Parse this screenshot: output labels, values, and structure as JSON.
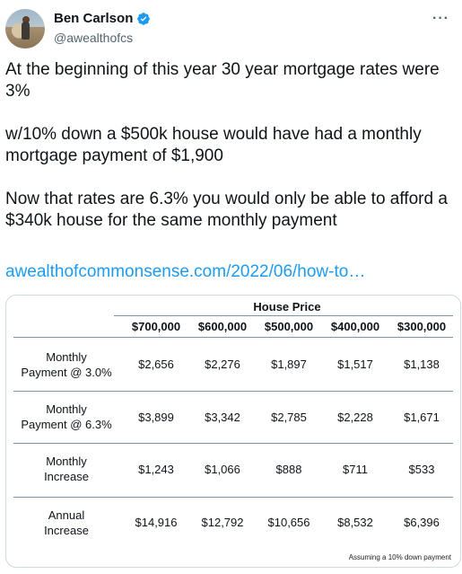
{
  "author": {
    "name": "Ben Carlson",
    "handle": "@awealthofcs",
    "verified_icon": "verified-badge-icon",
    "more_icon": "more-options-icon"
  },
  "tweet": {
    "paragraphs": [
      "At the beginning of this year 30 year mortgage rates were 3%",
      "w/10% down a $500k house would have had a monthly mortgage payment of $1,900",
      "Now that rates are 6.3% you would only be able to afford a $340k house for the same monthly payment"
    ],
    "link": "awealthofcommonsense.com/2022/06/how-to…"
  },
  "table": {
    "title": "House Price",
    "columns": [
      "$700,000",
      "$600,000",
      "$500,000",
      "$400,000",
      "$300,000"
    ],
    "rows": [
      {
        "label_1": "Monthly",
        "label_2": "Payment @ 3.0%",
        "values": [
          "$2,656",
          "$2,276",
          "$1,897",
          "$1,517",
          "$1,138"
        ]
      },
      {
        "label_1": "Monthly",
        "label_2": "Payment @ 6.3%",
        "values": [
          "$3,899",
          "$3,342",
          "$2,785",
          "$2,228",
          "$1,671"
        ]
      },
      {
        "label_1": "Monthly",
        "label_2": "Increase",
        "values": [
          "$1,243",
          "$1,066",
          "$888",
          "$711",
          "$533"
        ]
      },
      {
        "label_1": "Annual",
        "label_2": "Increase",
        "values": [
          "$14,916",
          "$12,792",
          "$10,656",
          "$8,532",
          "$6,396"
        ]
      }
    ],
    "footnote": "Assuming a 10% down payment"
  },
  "colors": {
    "link": "#1d9bf0",
    "verified": "#1d9bf0",
    "text": "#0f1419",
    "muted": "#536471"
  }
}
